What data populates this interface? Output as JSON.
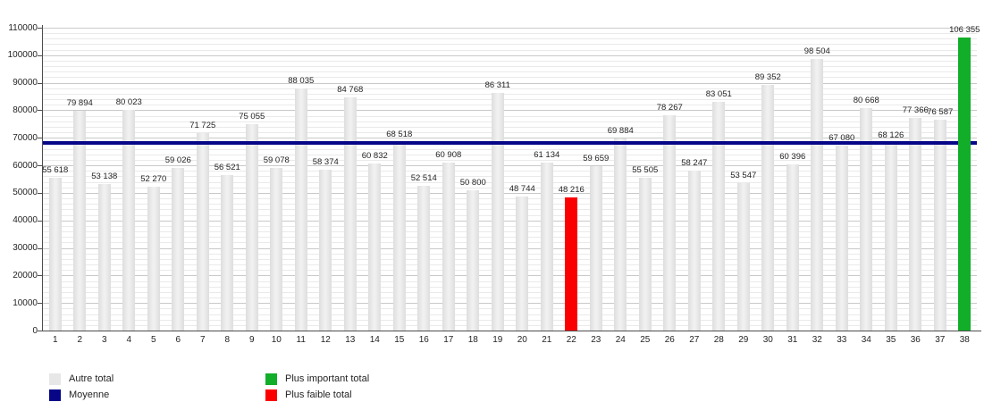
{
  "chart_data": {
    "type": "bar",
    "title": "",
    "categories": [
      "1",
      "2",
      "3",
      "4",
      "5",
      "6",
      "7",
      "8",
      "9",
      "10",
      "11",
      "12",
      "13",
      "14",
      "15",
      "16",
      "17",
      "18",
      "19",
      "20",
      "21",
      "22",
      "23",
      "24",
      "25",
      "26",
      "27",
      "28",
      "29",
      "30",
      "31",
      "32",
      "33",
      "34",
      "35",
      "36",
      "37",
      "38"
    ],
    "values": [
      55618,
      79894,
      53138,
      80023,
      52270,
      59026,
      71725,
      56521,
      75055,
      59078,
      88035,
      58374,
      84768,
      60832,
      68518,
      52514,
      60908,
      50800,
      86311,
      48744,
      61134,
      48216,
      59659,
      69884,
      55505,
      78267,
      58247,
      83051,
      53547,
      89352,
      60396,
      98504,
      67080,
      80668,
      68126,
      77366,
      76587,
      106355
    ],
    "value_labels": [
      "55 618",
      "79 894",
      "53 138",
      "80 023",
      "52 270",
      "59 026",
      "71 725",
      "56 521",
      "75 055",
      "59 078",
      "88 035",
      "58 374",
      "84 768",
      "60 832",
      "68 518",
      "52 514",
      "60 908",
      "50 800",
      "86 311",
      "48 744",
      "61 134",
      "48 216",
      "59 659",
      "69 884",
      "55 505",
      "78 267",
      "58 247",
      "83 051",
      "53 547",
      "89 352",
      "60 396",
      "98 504",
      "67 080",
      "80 668",
      "68 126",
      "77 366",
      "76 587",
      "106 355"
    ],
    "ylim": [
      0,
      110000
    ],
    "ytick_step": 10000,
    "minor_step": 2000,
    "y_tick_labels": [
      "0",
      "10000",
      "20000",
      "30000",
      "40000",
      "50000",
      "60000",
      "70000",
      "80000",
      "90000",
      "100000",
      "110000"
    ],
    "average_value": 68266,
    "max_index": 37,
    "min_index": 21,
    "grid": true,
    "legend_position": "bottom",
    "colors": {
      "other_bar": "#e7e7e7",
      "average_line": "#060687",
      "max_bar": "#12ad29",
      "min_bar": "#fa0000"
    },
    "legend": {
      "items": [
        {
          "label": "Autre total",
          "color": "#e7e7e7"
        },
        {
          "label": "Moyenne",
          "color": "#060687"
        },
        {
          "label": "Plus important total",
          "color": "#12ad29"
        },
        {
          "label": "Plus faible total",
          "color": "#fa0000"
        }
      ]
    }
  }
}
